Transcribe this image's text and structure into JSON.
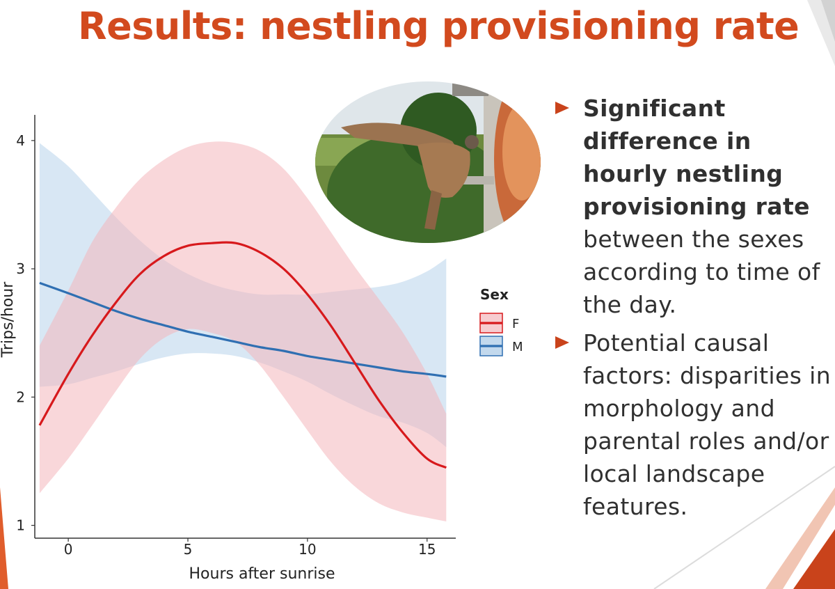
{
  "slide": {
    "title": "Results: nestling provisioning rate",
    "bullets": [
      {
        "bold": "Significant difference in hourly nestling provisioning rate",
        "text": " between the sexes according to time of the day."
      },
      {
        "bold": "",
        "text": "Potential causal factors: disparities in morphology and parental roles and/or local landscape features."
      }
    ],
    "photo_icon": "kestrel-photo-icon"
  },
  "colors": {
    "title": "#d24a1e",
    "accent": "#c9431b",
    "female_line": "#d7191c",
    "female_band": "#f4b6bc",
    "male_line": "#2f6fb2",
    "male_band": "#a9c9e6"
  },
  "chart_data": {
    "type": "line",
    "title": "",
    "xlabel": "Hours after sunrise",
    "ylabel": "Trips/hour",
    "xlim": [
      -1.4,
      16.2
    ],
    "ylim": [
      0.9,
      4.2
    ],
    "xticks": [
      0,
      5,
      10,
      15
    ],
    "yticks": [
      1,
      2,
      3,
      4
    ],
    "grid": false,
    "legend": {
      "title": "Sex",
      "position": "right"
    },
    "x": [
      -1.2,
      0,
      1,
      2,
      3,
      4,
      5,
      6,
      7,
      8,
      9,
      10,
      11,
      12,
      13,
      14,
      15,
      15.8
    ],
    "series": [
      {
        "name": "F",
        "values": [
          1.78,
          2.18,
          2.48,
          2.74,
          2.96,
          3.1,
          3.18,
          3.2,
          3.2,
          3.13,
          3.0,
          2.8,
          2.55,
          2.26,
          1.97,
          1.72,
          1.52,
          1.45
        ],
        "lower": [
          1.25,
          1.52,
          1.78,
          2.05,
          2.3,
          2.46,
          2.53,
          2.5,
          2.43,
          2.25,
          2.0,
          1.74,
          1.49,
          1.3,
          1.17,
          1.1,
          1.06,
          1.03
        ],
        "upper": [
          2.4,
          2.83,
          3.21,
          3.48,
          3.7,
          3.85,
          3.95,
          3.99,
          3.98,
          3.92,
          3.78,
          3.55,
          3.28,
          3.01,
          2.76,
          2.5,
          2.18,
          1.87
        ]
      },
      {
        "name": "M",
        "values": [
          2.89,
          2.81,
          2.74,
          2.67,
          2.61,
          2.56,
          2.51,
          2.47,
          2.43,
          2.39,
          2.36,
          2.32,
          2.29,
          2.26,
          2.23,
          2.2,
          2.18,
          2.16
        ],
        "lower": [
          2.08,
          2.1,
          2.15,
          2.2,
          2.26,
          2.31,
          2.34,
          2.34,
          2.32,
          2.27,
          2.2,
          2.12,
          2.02,
          1.93,
          1.85,
          1.8,
          1.72,
          1.61
        ],
        "upper": [
          3.98,
          3.8,
          3.6,
          3.4,
          3.22,
          3.07,
          2.96,
          2.88,
          2.83,
          2.8,
          2.8,
          2.8,
          2.82,
          2.84,
          2.86,
          2.9,
          2.98,
          3.08
        ]
      }
    ]
  }
}
